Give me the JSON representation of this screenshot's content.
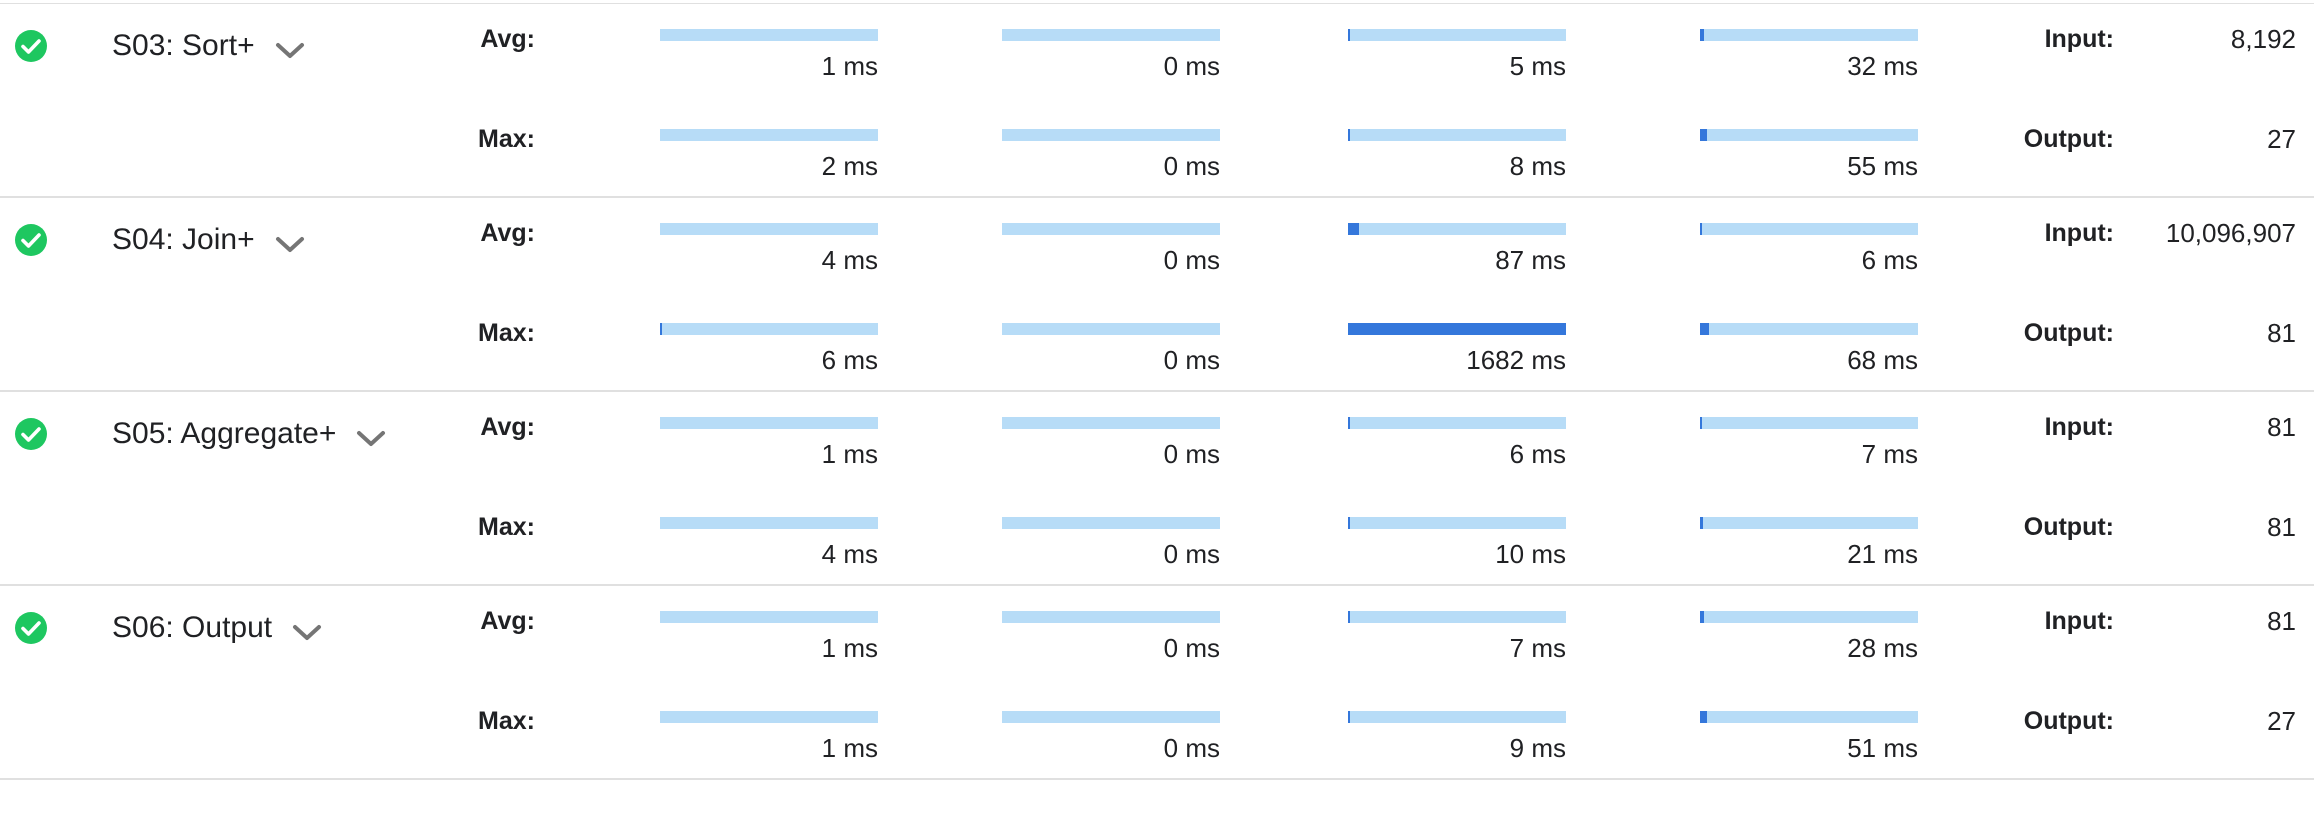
{
  "colors": {
    "status_ok": "#1ec760",
    "bar_track": "#b7dcf7",
    "bar_fill": "#3477db",
    "divider": "#e0e0e0",
    "chevron": "#757575"
  },
  "labels": {
    "avg": "Avg:",
    "max": "Max:",
    "input": "Input:",
    "output": "Output:"
  },
  "stages": [
    {
      "title": "S03: Sort+",
      "status_icon": "check-circle-icon",
      "expand_icon": "chevron-down-icon",
      "avg": {
        "bars": [
          {
            "label": "1 ms",
            "fraction": 0.0
          },
          {
            "label": "0 ms",
            "fraction": 0.0
          },
          {
            "label": "5 ms",
            "fraction": 0.003
          },
          {
            "label": "32 ms",
            "fraction": 0.019
          }
        ]
      },
      "max": {
        "bars": [
          {
            "label": "2 ms",
            "fraction": 0.0
          },
          {
            "label": "0 ms",
            "fraction": 0.0
          },
          {
            "label": "8 ms",
            "fraction": 0.005
          },
          {
            "label": "55 ms",
            "fraction": 0.033
          }
        ]
      },
      "input": "8,192",
      "output": "27"
    },
    {
      "title": "S04: Join+",
      "status_icon": "check-circle-icon",
      "expand_icon": "chevron-down-icon",
      "avg": {
        "bars": [
          {
            "label": "4 ms",
            "fraction": 0.0
          },
          {
            "label": "0 ms",
            "fraction": 0.0
          },
          {
            "label": "87 ms",
            "fraction": 0.052
          },
          {
            "label": "6 ms",
            "fraction": 0.004
          }
        ]
      },
      "max": {
        "bars": [
          {
            "label": "6 ms",
            "fraction": 0.004
          },
          {
            "label": "0 ms",
            "fraction": 0.0
          },
          {
            "label": "1682 ms",
            "fraction": 1.0
          },
          {
            "label": "68 ms",
            "fraction": 0.04
          }
        ]
      },
      "input": "10,096,907",
      "output": "81"
    },
    {
      "title": "S05: Aggregate+",
      "status_icon": "check-circle-icon",
      "expand_icon": "chevron-down-icon",
      "avg": {
        "bars": [
          {
            "label": "1 ms",
            "fraction": 0.0
          },
          {
            "label": "0 ms",
            "fraction": 0.0
          },
          {
            "label": "6 ms",
            "fraction": 0.004
          },
          {
            "label": "7 ms",
            "fraction": 0.004
          }
        ]
      },
      "max": {
        "bars": [
          {
            "label": "4 ms",
            "fraction": 0.0
          },
          {
            "label": "0 ms",
            "fraction": 0.0
          },
          {
            "label": "10 ms",
            "fraction": 0.006
          },
          {
            "label": "21 ms",
            "fraction": 0.012
          }
        ]
      },
      "input": "81",
      "output": "81"
    },
    {
      "title": "S06: Output",
      "status_icon": "check-circle-icon",
      "expand_icon": "chevron-down-icon",
      "avg": {
        "bars": [
          {
            "label": "1 ms",
            "fraction": 0.0
          },
          {
            "label": "0 ms",
            "fraction": 0.0
          },
          {
            "label": "7 ms",
            "fraction": 0.004
          },
          {
            "label": "28 ms",
            "fraction": 0.017
          }
        ]
      },
      "max": {
        "bars": [
          {
            "label": "1 ms",
            "fraction": 0.0
          },
          {
            "label": "0 ms",
            "fraction": 0.0
          },
          {
            "label": "9 ms",
            "fraction": 0.005
          },
          {
            "label": "51 ms",
            "fraction": 0.03
          }
        ]
      },
      "input": "81",
      "output": "27"
    }
  ]
}
